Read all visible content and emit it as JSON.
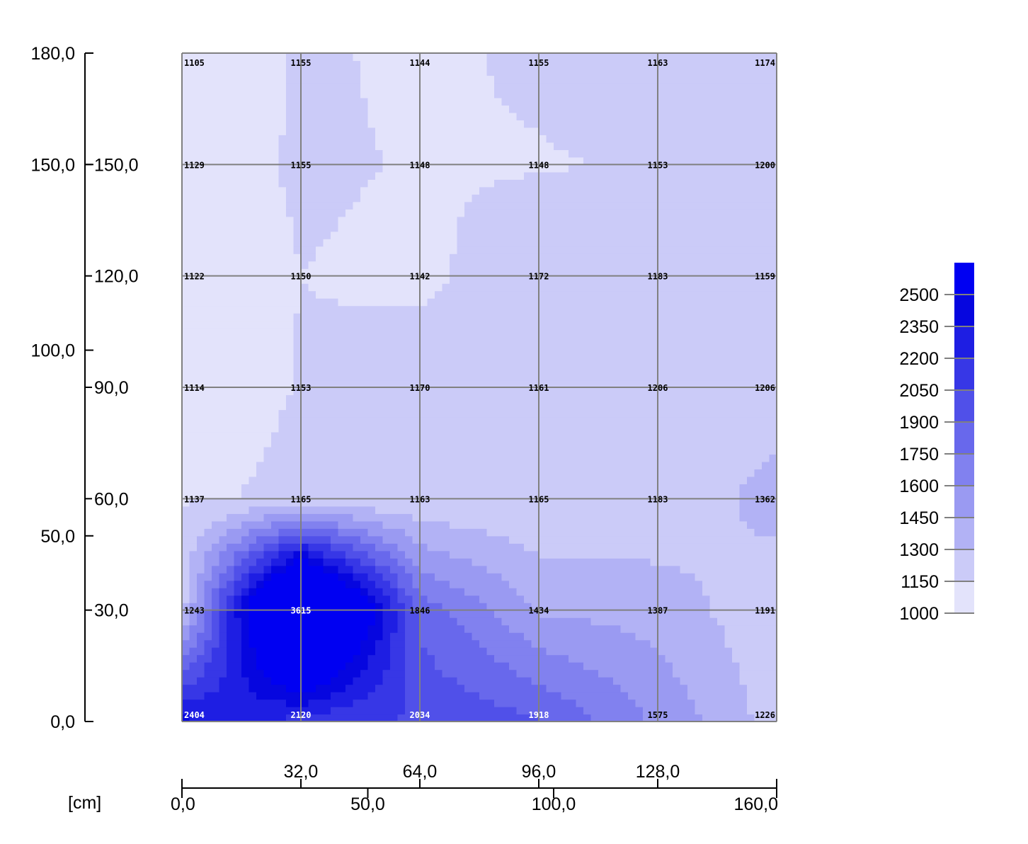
{
  "chart_data": {
    "type": "heatmap",
    "unit_label": "[cm]",
    "x_grid": [
      0,
      32,
      64,
      96,
      128,
      160
    ],
    "y_grid": [
      0,
      30,
      60,
      90,
      120,
      150,
      180
    ],
    "values": [
      [
        2404,
        2120,
        2034,
        1918,
        1575,
        1226
      ],
      [
        1243,
        3615,
        1846,
        1434,
        1387,
        1191
      ],
      [
        1137,
        1165,
        1163,
        1165,
        1183,
        1362
      ],
      [
        1114,
        1153,
        1170,
        1161,
        1206,
        1206
      ],
      [
        1122,
        1150,
        1142,
        1172,
        1183,
        1159
      ],
      [
        1129,
        1155,
        1148,
        1148,
        1153,
        1200
      ],
      [
        1105,
        1155,
        1144,
        1155,
        1163,
        1174
      ]
    ],
    "cell_labels": [
      [
        "2404",
        "2120",
        "2034",
        "1918",
        "1575",
        "1226"
      ],
      [
        "1243",
        "3615",
        "1846",
        "1434",
        "1387",
        "1191"
      ],
      [
        "1137",
        "1165",
        "1163",
        "1165",
        "1183",
        "1362"
      ],
      [
        "1114",
        "1153",
        "1170",
        "1161",
        "1206",
        "1206"
      ],
      [
        "1122",
        "1150",
        "1142",
        "1172",
        "1183",
        "1159"
      ],
      [
        "1129",
        "1155",
        "1148",
        "1148",
        "1153",
        "1200"
      ],
      [
        "1105",
        "1155",
        "1144",
        "1155",
        "1163",
        "1174"
      ]
    ],
    "xlim": [
      0,
      160
    ],
    "ylim": [
      0,
      180
    ],
    "x_axis_outer": {
      "ticks": [
        0,
        50,
        100,
        160
      ],
      "labels": [
        "0,0",
        "50,0",
        "100,0",
        "160,0"
      ]
    },
    "x_axis_inner": {
      "ticks": [
        32,
        64,
        96,
        128
      ],
      "labels": [
        "32,0",
        "64,0",
        "96,0",
        "128,0"
      ]
    },
    "y_axis_outer": {
      "ticks": [
        0,
        50,
        100,
        150,
        180
      ],
      "labels": [
        "0,0",
        "50,0",
        "100,0",
        "150,0",
        "180,0"
      ]
    },
    "y_axis_inner": {
      "ticks": [
        30,
        60,
        90,
        120,
        150
      ],
      "labels": [
        "30,0",
        "60,0",
        "90,0",
        "120,0",
        "150,0"
      ]
    },
    "legend": {
      "position": "right",
      "levels": [
        1000,
        1150,
        1300,
        1450,
        1600,
        1750,
        1900,
        2050,
        2200,
        2350,
        2500
      ],
      "labels": [
        "1000",
        "1150",
        "1300",
        "1450",
        "1600",
        "1750",
        "1900",
        "2050",
        "2200",
        "2350",
        "2500"
      ],
      "colors": [
        "#ffffff",
        "#e3e3fb",
        "#cbcbf8",
        "#b2b2f5",
        "#9a9af2",
        "#8181ef",
        "#6868ec",
        "#5050e9",
        "#3737e6",
        "#1e1ee3",
        "#0606df",
        "#0000f2"
      ]
    },
    "grid": true
  }
}
